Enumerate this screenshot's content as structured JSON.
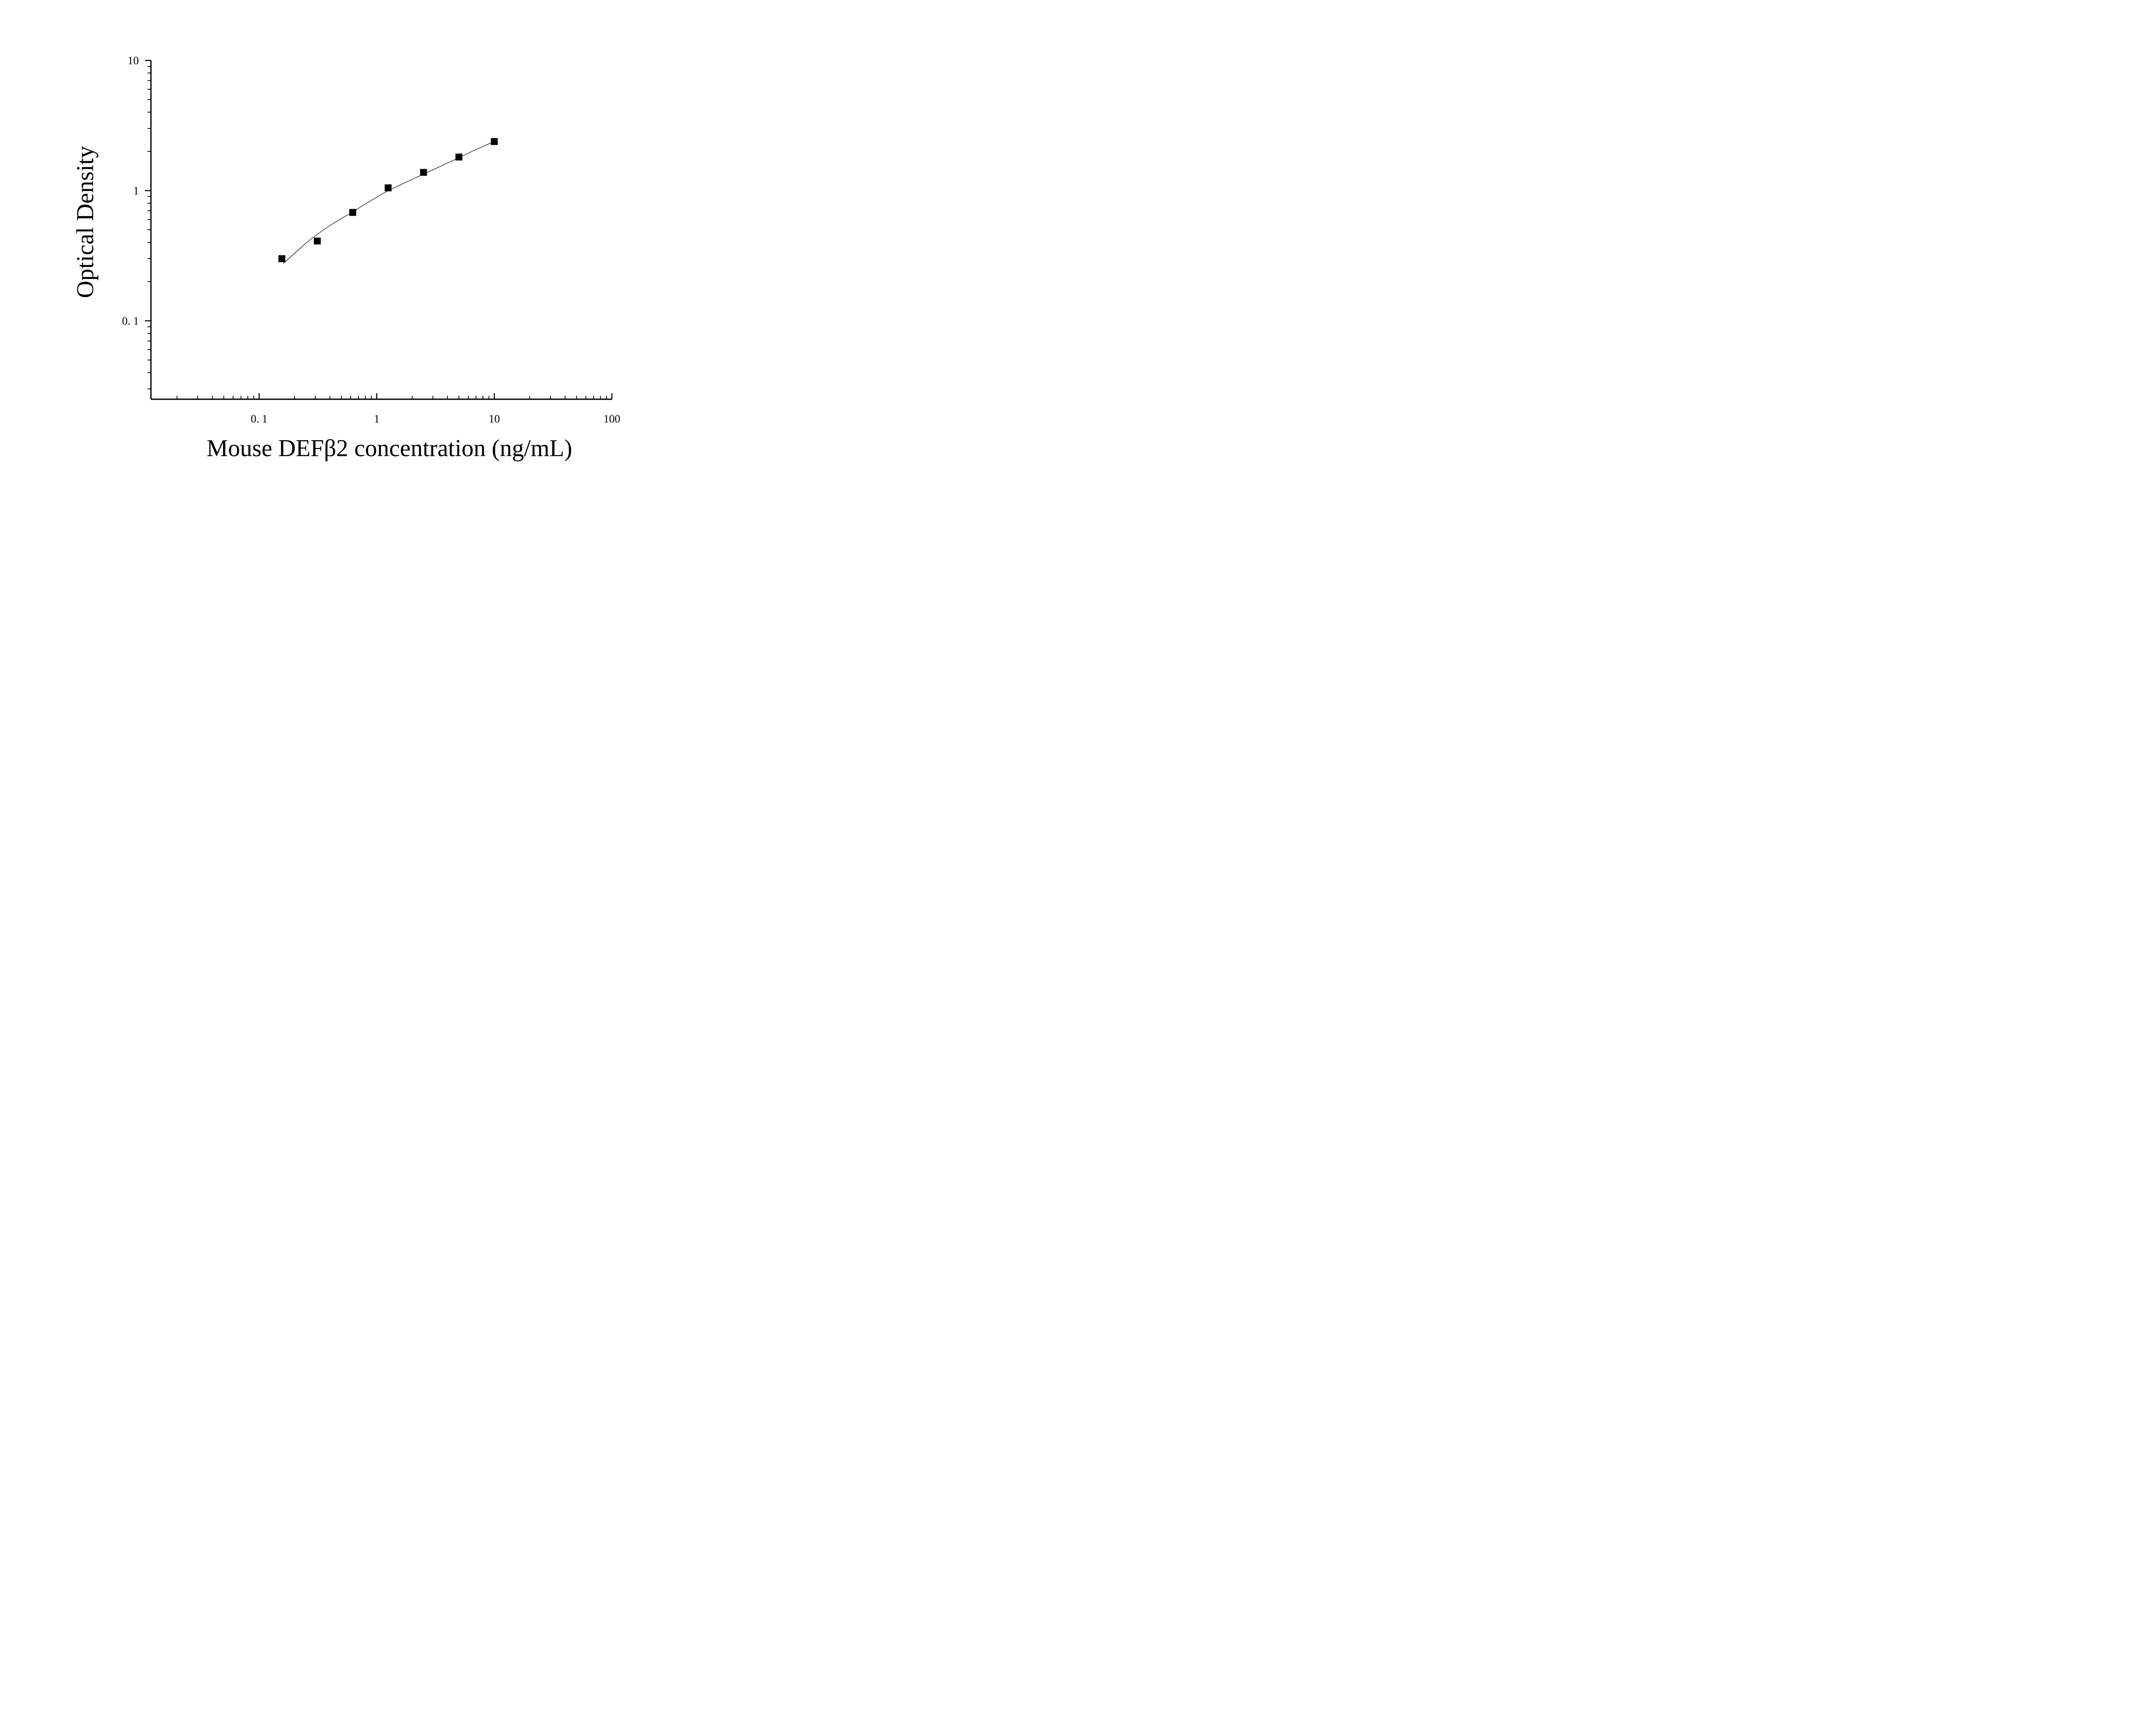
{
  "chart_data": {
    "type": "scatter",
    "xlabel": "Mouse DEFβ2 concentration (ng/mL)",
    "ylabel": "Optical Density",
    "xscale": "log",
    "yscale": "log",
    "xlim": [
      0.012,
      100
    ],
    "ylim": [
      0.025,
      10
    ],
    "x_ticks": [
      {
        "value": 0.1,
        "label": "0. 1"
      },
      {
        "value": 1,
        "label": "1"
      },
      {
        "value": 10,
        "label": "10"
      },
      {
        "value": 100,
        "label": "100"
      }
    ],
    "y_ticks": [
      {
        "value": 0.1,
        "label": "0. 1"
      },
      {
        "value": 1,
        "label": "1"
      },
      {
        "value": 10,
        "label": "10"
      }
    ],
    "grid": false,
    "series": [
      {
        "marker": "square",
        "color": "#000000",
        "x": [
          0.156,
          0.312,
          0.625,
          1.25,
          2.5,
          5,
          10
        ],
        "y": [
          0.3,
          0.41,
          0.68,
          1.05,
          1.38,
          1.81,
          2.38
        ]
      }
    ],
    "fit_curve": {
      "color": "#000000",
      "x": [
        0.16,
        0.2,
        0.25,
        0.3,
        0.4,
        0.5,
        0.6,
        0.8,
        1.0,
        1.25,
        1.6,
        2.0,
        2.5,
        3.2,
        4.0,
        5.0,
        6.3,
        8.0,
        10
      ],
      "y": [
        0.275,
        0.33,
        0.395,
        0.45,
        0.54,
        0.61,
        0.67,
        0.79,
        0.89,
        1.0,
        1.11,
        1.22,
        1.34,
        1.48,
        1.63,
        1.79,
        1.98,
        2.18,
        2.38
      ]
    }
  }
}
